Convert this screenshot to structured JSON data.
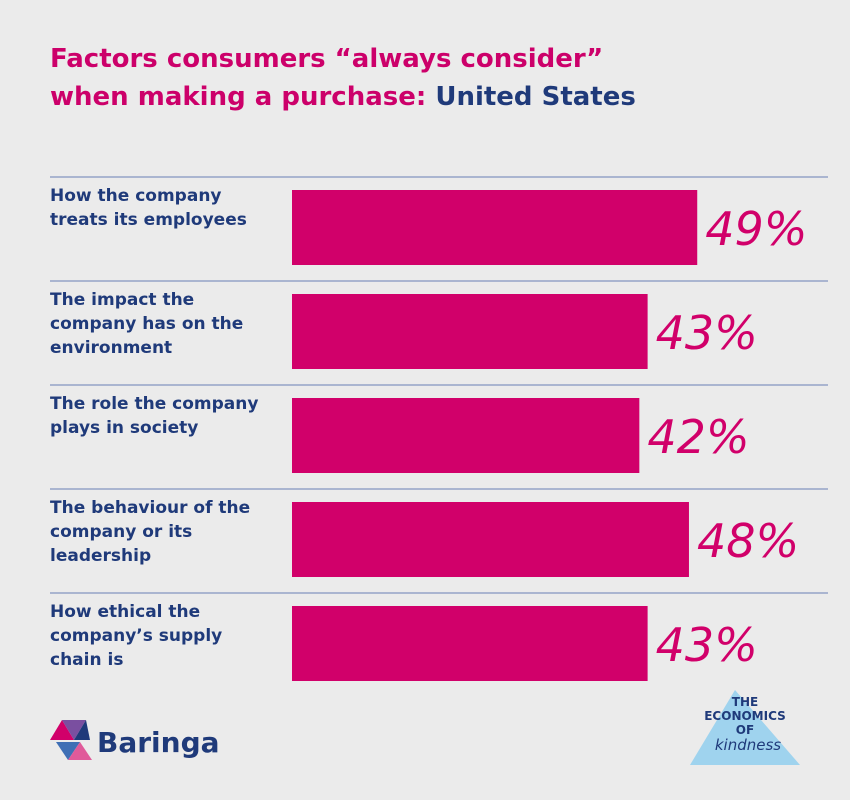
{
  "chart_data": {
    "type": "bar",
    "orientation": "horizontal",
    "title": [
      "Factors consumers “always consider”",
      "when making a purchase:"
    ],
    "title_highlight": "United States",
    "categories": [
      "How the company treats its employees",
      "The impact the company has on the environment",
      "The role the company plays in society",
      "The behaviour of the company or its leadership",
      "How ethical the company’s supply chain is"
    ],
    "values": [
      49,
      43,
      42,
      48,
      43
    ],
    "value_labels": [
      "49%",
      "43%",
      "42%",
      "48%",
      "43%"
    ],
    "color": "#d1006a"
  },
  "footer": {
    "brand": "Baringa",
    "badge": [
      "THE",
      "ECONOMICS",
      "OF",
      "kindness"
    ]
  }
}
